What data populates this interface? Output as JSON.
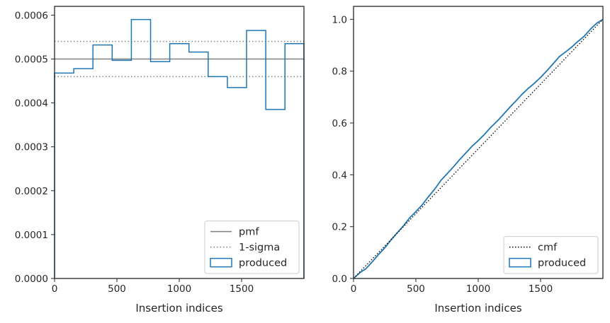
{
  "chart_data": [
    {
      "type": "step",
      "xlabel": "Insertion indices",
      "ylabel": "",
      "xlim": [
        0,
        2000
      ],
      "ylim": [
        0,
        0.00062
      ],
      "xticks": [
        0,
        500,
        1000,
        1500
      ],
      "xtick_labels": [
        "0",
        "500",
        "1000",
        "1500"
      ],
      "yticks": [
        0,
        0.0001,
        0.0002,
        0.0003,
        0.0004,
        0.0005,
        0.0006
      ],
      "ytick_labels": [
        "0.0000",
        "0.0001",
        "0.0002",
        "0.0003",
        "0.0004",
        "0.0005",
        "0.0006"
      ],
      "legend_position": "lower right",
      "legend": [
        "pmf",
        "1-sigma",
        "produced"
      ],
      "pmf": {
        "name": "pmf",
        "y": 0.0005,
        "color": "#808080",
        "style": "solid"
      },
      "sigma": {
        "name": "1-sigma",
        "lower": 0.00046,
        "upper": 0.00054,
        "color": "#808080",
        "style": "dotted"
      },
      "series": [
        {
          "name": "produced",
          "color": "#1f77b4",
          "bin_edges": [
            0,
            154,
            308,
            462,
            616,
            770,
            924,
            1078,
            1232,
            1386,
            1540,
            1694,
            1848,
            2000
          ],
          "values": [
            0.000468,
            0.000478,
            0.000532,
            0.000497,
            0.00059,
            0.000494,
            0.000535,
            0.000516,
            0.00046,
            0.000435,
            0.000565,
            0.000385,
            0.000535
          ]
        }
      ]
    },
    {
      "type": "line",
      "xlabel": "Insertion indices",
      "ylabel": "",
      "xlim": [
        0,
        2000
      ],
      "ylim": [
        0,
        1.05
      ],
      "xticks": [
        0,
        500,
        1000,
        1500
      ],
      "xtick_labels": [
        "0",
        "500",
        "1000",
        "1500"
      ],
      "yticks": [
        0,
        0.2,
        0.4,
        0.6,
        0.8,
        1.0
      ],
      "ytick_labels": [
        "0.0",
        "0.2",
        "0.4",
        "0.6",
        "0.8",
        "1.0"
      ],
      "legend_position": "lower right",
      "legend": [
        "cmf",
        "produced"
      ],
      "series": [
        {
          "name": "cmf",
          "color": "#000000",
          "style": "dotted",
          "x": [
            0,
            2000
          ],
          "y": [
            0,
            1.0
          ]
        },
        {
          "name": "produced",
          "color": "#1f77b4",
          "x": [
            0,
            50,
            100,
            150,
            200,
            250,
            300,
            350,
            400,
            450,
            500,
            550,
            600,
            650,
            700,
            750,
            800,
            850,
            900,
            950,
            1000,
            1050,
            1100,
            1150,
            1200,
            1250,
            1300,
            1350,
            1400,
            1450,
            1500,
            1550,
            1600,
            1650,
            1700,
            1750,
            1800,
            1850,
            1900,
            1950,
            2000
          ],
          "y": [
            0,
            0.022,
            0.038,
            0.064,
            0.092,
            0.118,
            0.148,
            0.176,
            0.203,
            0.234,
            0.258,
            0.284,
            0.315,
            0.344,
            0.378,
            0.404,
            0.43,
            0.458,
            0.484,
            0.51,
            0.532,
            0.556,
            0.583,
            0.606,
            0.632,
            0.659,
            0.684,
            0.71,
            0.733,
            0.753,
            0.776,
            0.801,
            0.828,
            0.856,
            0.874,
            0.893,
            0.915,
            0.935,
            0.962,
            0.985,
            1.0
          ]
        }
      ]
    }
  ]
}
